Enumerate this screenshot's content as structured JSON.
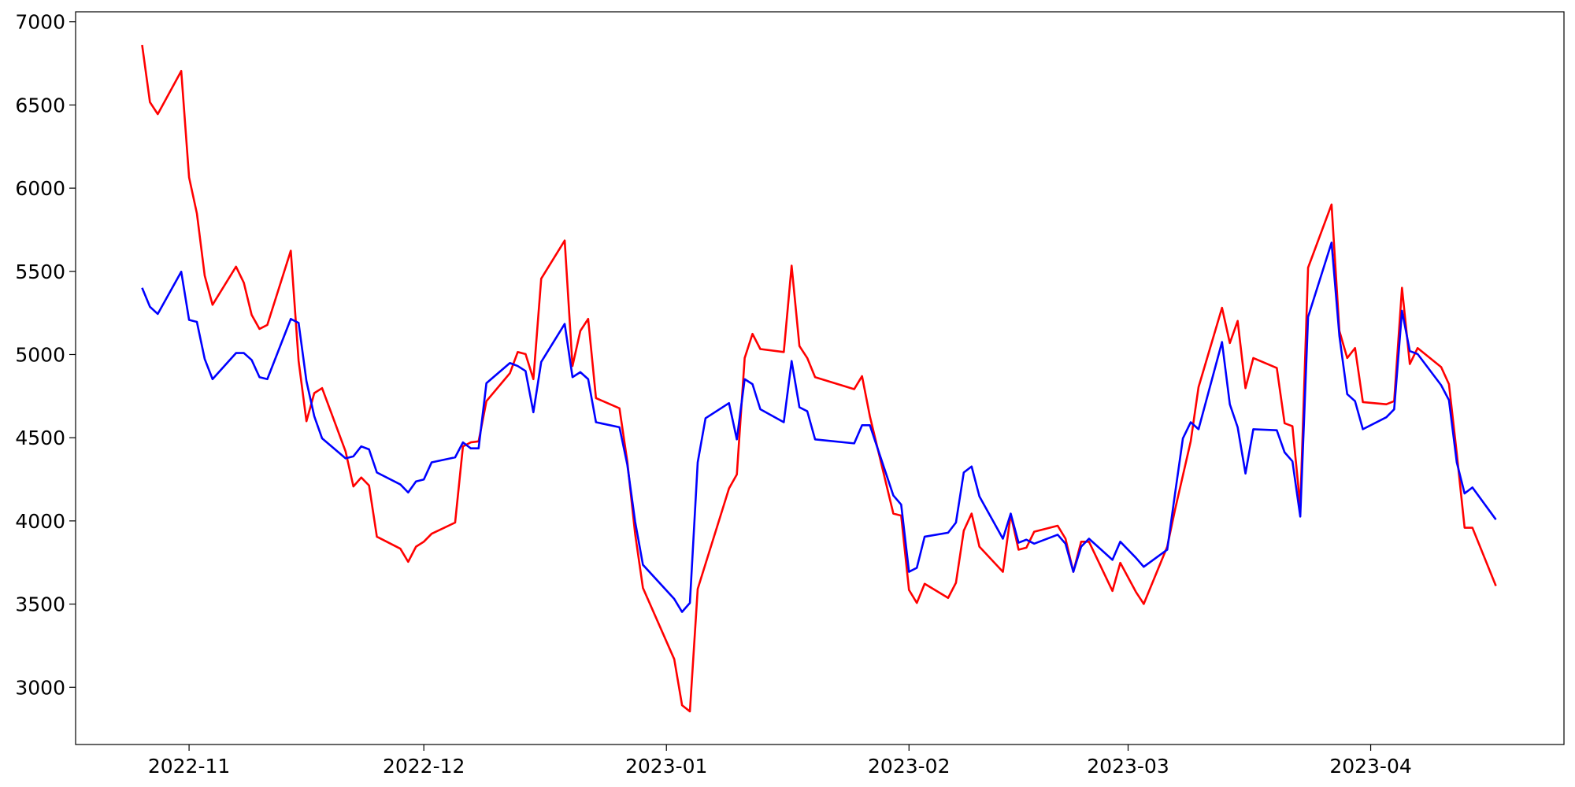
{
  "chart_data": {
    "type": "line",
    "x": [
      -6,
      -5,
      -4,
      -1,
      0,
      1,
      2,
      3,
      6,
      7,
      8,
      9,
      10,
      13,
      14,
      15,
      16,
      17,
      20,
      21,
      22,
      23,
      24,
      27,
      28,
      29,
      30,
      31,
      34,
      35,
      36,
      37,
      38,
      41,
      42,
      43,
      44,
      45,
      48,
      49,
      50,
      51,
      52,
      55,
      56,
      57,
      58,
      62,
      63,
      64,
      65,
      66,
      69,
      70,
      71,
      72,
      73,
      76,
      77,
      78,
      79,
      80,
      85,
      86,
      87,
      90,
      91,
      92,
      93,
      94,
      97,
      98,
      99,
      100,
      101,
      104,
      105,
      106,
      107,
      108,
      111,
      112,
      113,
      114,
      115,
      118,
      119,
      121,
      122,
      125,
      126,
      127,
      128,
      129,
      132,
      133,
      134,
      135,
      136,
      139,
      140,
      141,
      142,
      143,
      146,
      147,
      148,
      149,
      150,
      153,
      154,
      155,
      156,
      157,
      160,
      161,
      162,
      163,
      164,
      167
    ],
    "series": [
      {
        "color": "#ff0000",
        "values": [
          6861,
          6517,
          6445,
          6704,
          6065,
          5848,
          5474,
          5299,
          5528,
          5431,
          5238,
          5154,
          5178,
          5624,
          4961,
          4599,
          4768,
          4798,
          4418,
          4207,
          4261,
          4213,
          3905,
          3833,
          3754,
          3845,
          3875,
          3923,
          3990,
          4448,
          4472,
          4478,
          4720,
          4888,
          5015,
          5003,
          4852,
          5456,
          5685,
          4931,
          5142,
          5214,
          4738,
          4677,
          4358,
          3923,
          3597,
          3169,
          2892,
          2855,
          3591,
          3742,
          4195,
          4279,
          4979,
          5124,
          5033,
          5015,
          5534,
          5051,
          4979,
          4864,
          4792,
          4870,
          4629,
          4044,
          4032,
          3585,
          3507,
          3622,
          3537,
          3628,
          3941,
          4044,
          3845,
          3694,
          4038,
          3827,
          3839,
          3935,
          3971,
          3893,
          3694,
          3875,
          3875,
          3579,
          3748,
          3573,
          3501,
          3845,
          4068,
          4273,
          4478,
          4804,
          5281,
          5069,
          5202,
          4798,
          4979,
          4919,
          4587,
          4569,
          4086,
          5522,
          5902,
          5142,
          4979,
          5039,
          4714,
          4701,
          4720,
          5401,
          4943,
          5039,
          4925,
          4822,
          4406,
          3959,
          3959,
          3609
        ]
      },
      {
        "color": "#0000ff",
        "values": [
          5401,
          5287,
          5244,
          5498,
          5208,
          5196,
          4973,
          4852,
          5009,
          5009,
          4967,
          4864,
          4852,
          5214,
          5190,
          4840,
          4629,
          4496,
          4376,
          4388,
          4448,
          4430,
          4291,
          4219,
          4171,
          4237,
          4249,
          4352,
          4382,
          4472,
          4436,
          4436,
          4828,
          4949,
          4931,
          4901,
          4653,
          4955,
          5184,
          4864,
          4894,
          4852,
          4593,
          4563,
          4339,
          3996,
          3736,
          3531,
          3453,
          3507,
          4352,
          4617,
          4708,
          4490,
          4852,
          4822,
          4671,
          4593,
          4961,
          4683,
          4659,
          4490,
          4466,
          4575,
          4575,
          4153,
          4098,
          3694,
          3718,
          3905,
          3929,
          3990,
          4291,
          4327,
          4147,
          3893,
          4044,
          3869,
          3887,
          3863,
          3917,
          3863,
          3694,
          3845,
          3893,
          3766,
          3875,
          3778,
          3724,
          3827,
          4165,
          4496,
          4593,
          4551,
          5075,
          4701,
          4563,
          4285,
          4551,
          4545,
          4412,
          4358,
          4026,
          5226,
          5673,
          5112,
          4762,
          4720,
          4551,
          4623,
          4671,
          5263,
          5021,
          5003,
          4816,
          4726,
          4352,
          4165,
          4201,
          4008
        ]
      }
    ],
    "xlim": [
      -14.5,
      175.7
    ],
    "xticks": [
      {
        "value": 0,
        "label": "2022-11"
      },
      {
        "value": 30,
        "label": "2022-12"
      },
      {
        "value": 61,
        "label": "2023-01"
      },
      {
        "value": 92,
        "label": "2023-02"
      },
      {
        "value": 120,
        "label": "2023-03"
      },
      {
        "value": 151,
        "label": "2023-04"
      }
    ],
    "ylim": [
      2656,
      7060
    ],
    "yticks": [
      3000,
      3500,
      4000,
      4500,
      5000,
      5500,
      6000,
      6500,
      7000
    ],
    "grid": false
  }
}
